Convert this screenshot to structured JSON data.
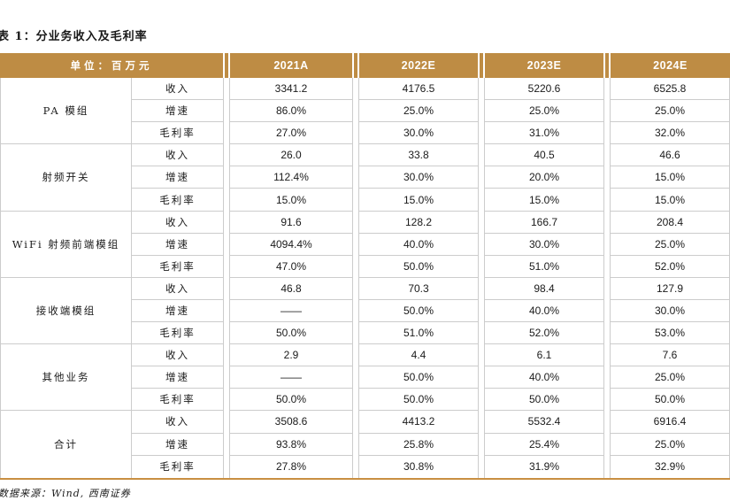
{
  "title": "表 1：分业务收入及毛利率",
  "source_note": "数据来源：Wind, 西南证券",
  "colors": {
    "header_bg": "#be8c44",
    "header_text": "#ffffff",
    "grid_border": "#cccccc",
    "bottom_rule": "#c98f42"
  },
  "table": {
    "unit_label": "单位：百万元",
    "year_headers": [
      "2021A",
      "2022E",
      "2023E",
      "2024E"
    ],
    "metric_labels": [
      "收入",
      "增速",
      "毛利率"
    ],
    "groups": [
      {
        "name": "PA 模组",
        "rows": [
          {
            "metric": "收入",
            "values": [
              "3341.2",
              "4176.5",
              "5220.6",
              "6525.8"
            ]
          },
          {
            "metric": "增速",
            "values": [
              "86.0%",
              "25.0%",
              "25.0%",
              "25.0%"
            ]
          },
          {
            "metric": "毛利率",
            "values": [
              "27.0%",
              "30.0%",
              "31.0%",
              "32.0%"
            ]
          }
        ]
      },
      {
        "name": "射频开关",
        "rows": [
          {
            "metric": "收入",
            "values": [
              "26.0",
              "33.8",
              "40.5",
              "46.6"
            ]
          },
          {
            "metric": "增速",
            "values": [
              "112.4%",
              "30.0%",
              "20.0%",
              "15.0%"
            ]
          },
          {
            "metric": "毛利率",
            "values": [
              "15.0%",
              "15.0%",
              "15.0%",
              "15.0%"
            ]
          }
        ]
      },
      {
        "name": "WiFi 射频前端模组",
        "rows": [
          {
            "metric": "收入",
            "values": [
              "91.6",
              "128.2",
              "166.7",
              "208.4"
            ]
          },
          {
            "metric": "增速",
            "values": [
              "4094.4%",
              "40.0%",
              "30.0%",
              "25.0%"
            ]
          },
          {
            "metric": "毛利率",
            "values": [
              "47.0%",
              "50.0%",
              "51.0%",
              "52.0%"
            ]
          }
        ]
      },
      {
        "name": "接收端模组",
        "rows": [
          {
            "metric": "收入",
            "values": [
              "46.8",
              "70.3",
              "98.4",
              "127.9"
            ]
          },
          {
            "metric": "增速",
            "values": [
              "——",
              "50.0%",
              "40.0%",
              "30.0%"
            ]
          },
          {
            "metric": "毛利率",
            "values": [
              "50.0%",
              "51.0%",
              "52.0%",
              "53.0%"
            ]
          }
        ]
      },
      {
        "name": "其他业务",
        "rows": [
          {
            "metric": "收入",
            "values": [
              "2.9",
              "4.4",
              "6.1",
              "7.6"
            ]
          },
          {
            "metric": "增速",
            "values": [
              "——",
              "50.0%",
              "40.0%",
              "25.0%"
            ]
          },
          {
            "metric": "毛利率",
            "values": [
              "50.0%",
              "50.0%",
              "50.0%",
              "50.0%"
            ]
          }
        ]
      },
      {
        "name": "合计",
        "rows": [
          {
            "metric": "收入",
            "values": [
              "3508.6",
              "4413.2",
              "5532.4",
              "6916.4"
            ]
          },
          {
            "metric": "增速",
            "values": [
              "93.8%",
              "25.8%",
              "25.4%",
              "25.0%"
            ]
          },
          {
            "metric": "毛利率",
            "values": [
              "27.8%",
              "30.8%",
              "31.9%",
              "32.9%"
            ]
          }
        ]
      }
    ]
  }
}
